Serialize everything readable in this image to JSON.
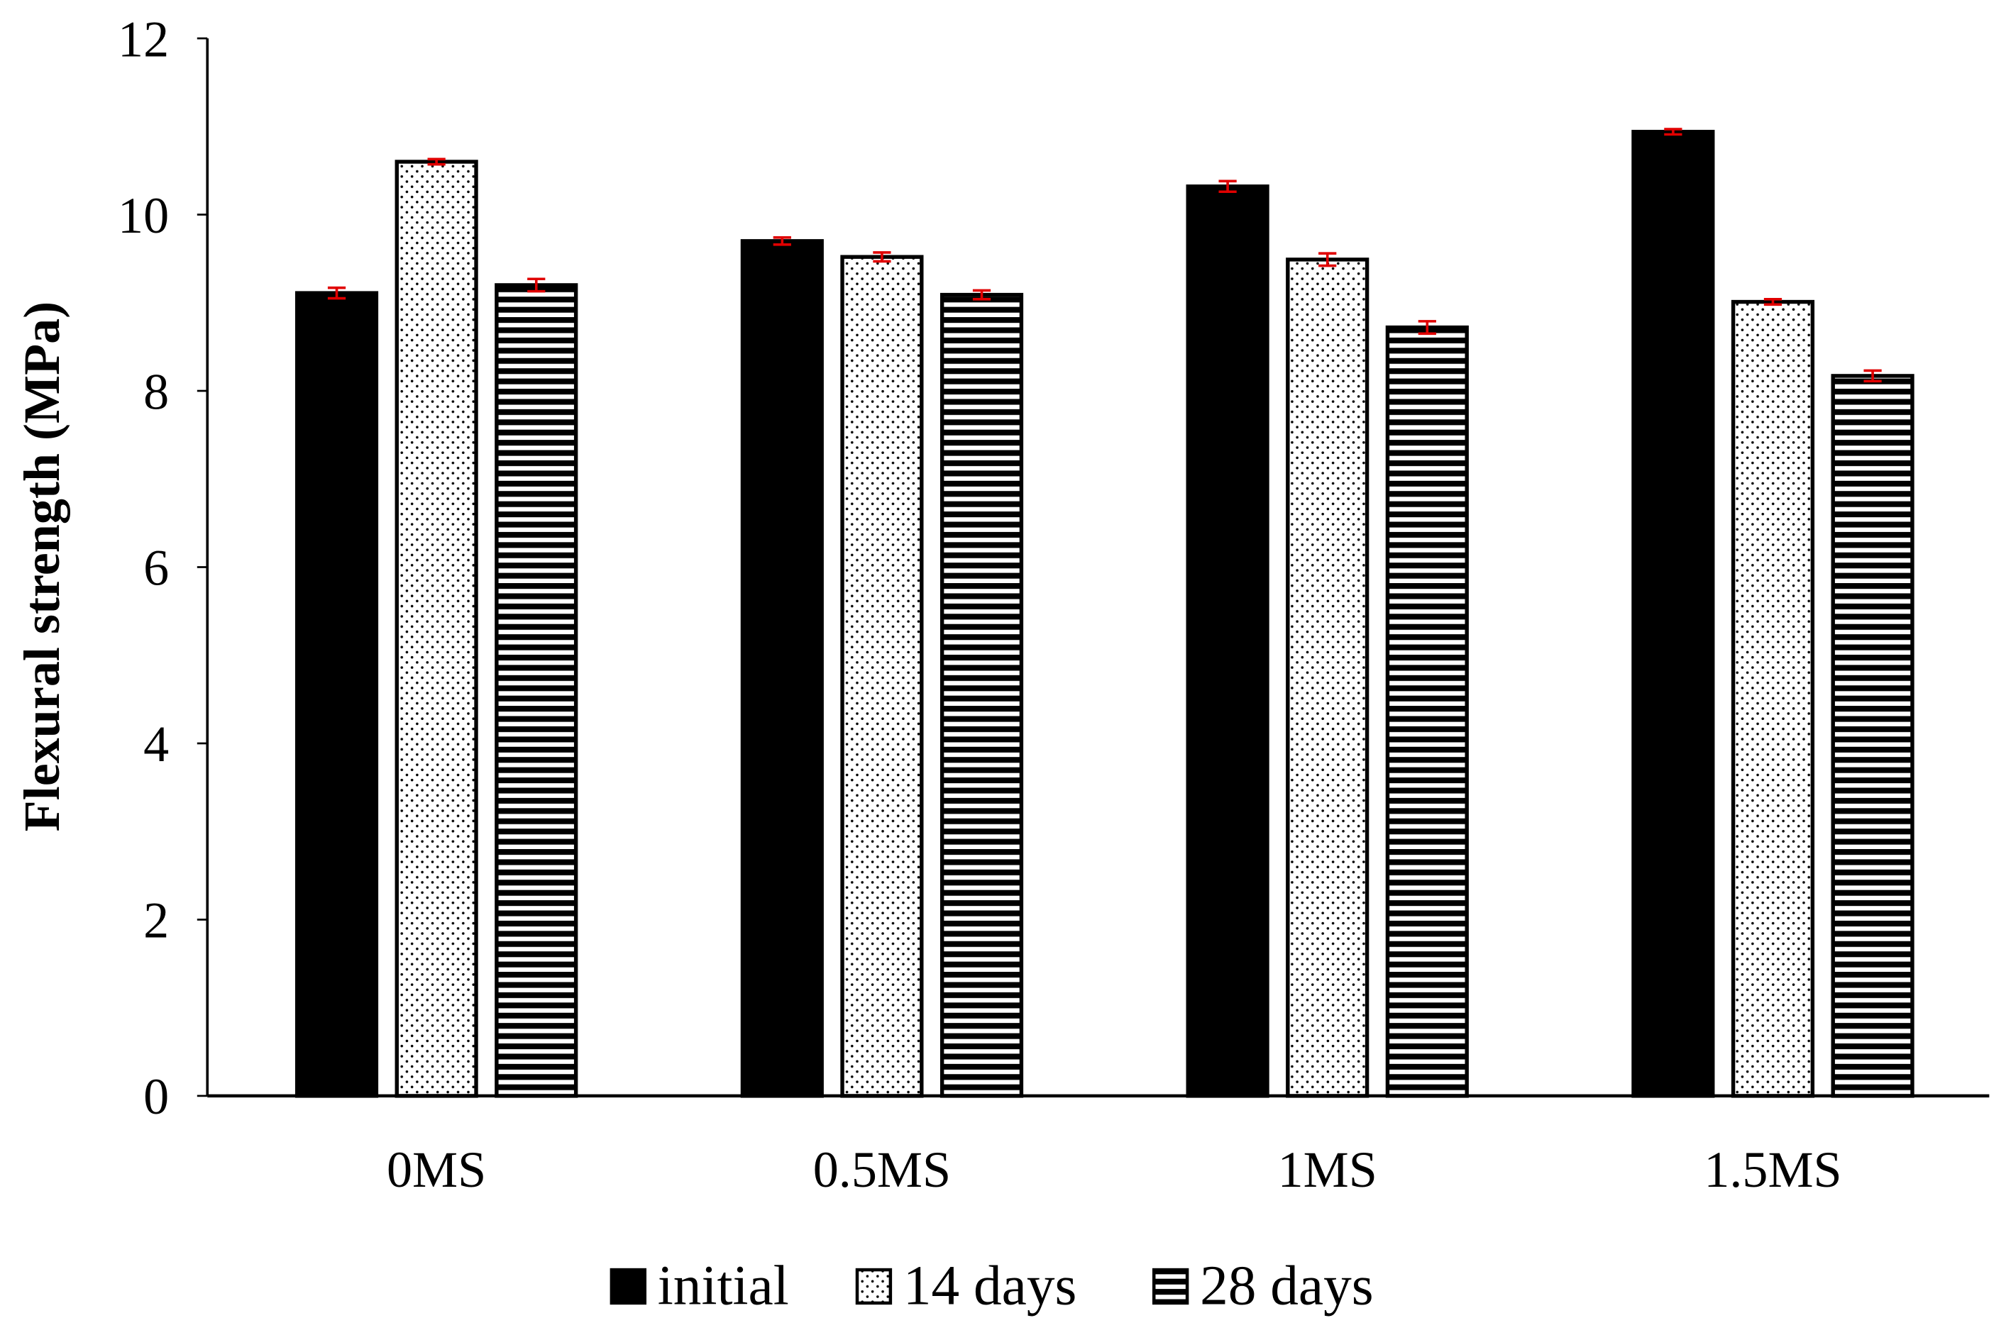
{
  "chart_data": {
    "type": "bar",
    "title": "",
    "xlabel": "",
    "ylabel": "Flexural strength (MPa)",
    "ylim": [
      0,
      12
    ],
    "yticks": [
      "0",
      "2",
      "4",
      "6",
      "8",
      "10",
      "12"
    ],
    "categories": [
      "0MS",
      "0.5MS",
      "1MS",
      "1.5MS"
    ],
    "series": [
      {
        "name": "initial",
        "pattern": "solid",
        "values": [
          9.11,
          9.7,
          10.32,
          10.94
        ],
        "errors": [
          0.06,
          0.04,
          0.06,
          0.03
        ]
      },
      {
        "name": "14 days",
        "pattern": "dots",
        "values": [
          10.6,
          9.52,
          9.49,
          9.01
        ],
        "errors": [
          0.03,
          0.05,
          0.07,
          0.03
        ]
      },
      {
        "name": "28 days",
        "pattern": "horizontal-stripes",
        "values": [
          9.2,
          9.09,
          8.72,
          8.17
        ],
        "errors": [
          0.07,
          0.05,
          0.07,
          0.06
        ]
      }
    ],
    "legend_position": "bottom-center",
    "grid": false,
    "colors": {
      "bar": "#000000",
      "error_bar": "#e00000",
      "background": "#ffffff"
    }
  }
}
